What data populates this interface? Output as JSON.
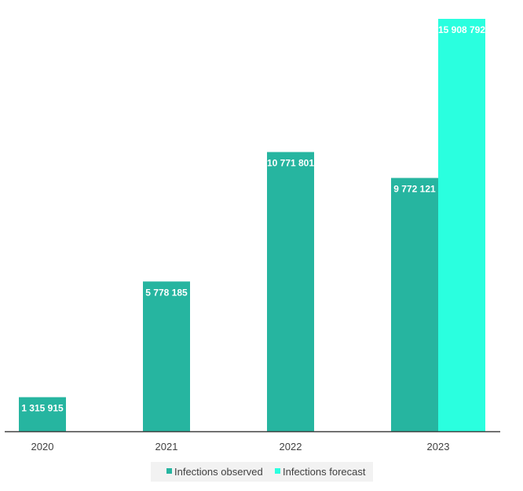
{
  "chart_data": {
    "type": "bar",
    "categories": [
      "2020",
      "2021",
      "2022",
      "2023"
    ],
    "series": [
      {
        "name": "Infections observed",
        "color": "#26b5a0",
        "values": [
          1315915,
          5778185,
          10771801,
          9772121
        ],
        "labels": [
          "1 315 915",
          "5 778 185",
          "10 771 801",
          "9 772 121"
        ]
      },
      {
        "name": "Infections forecast",
        "color": "#2affdf",
        "values": [
          null,
          null,
          null,
          15908792
        ],
        "labels": [
          "",
          "",
          "",
          "15 908 792"
        ]
      }
    ],
    "title": "",
    "xlabel": "",
    "ylabel": "",
    "ylim": [
      0,
      15908792
    ],
    "grid": false,
    "legend": {
      "position": "bottom",
      "background": "#f2f2f2"
    },
    "axis_color": "#404040"
  }
}
